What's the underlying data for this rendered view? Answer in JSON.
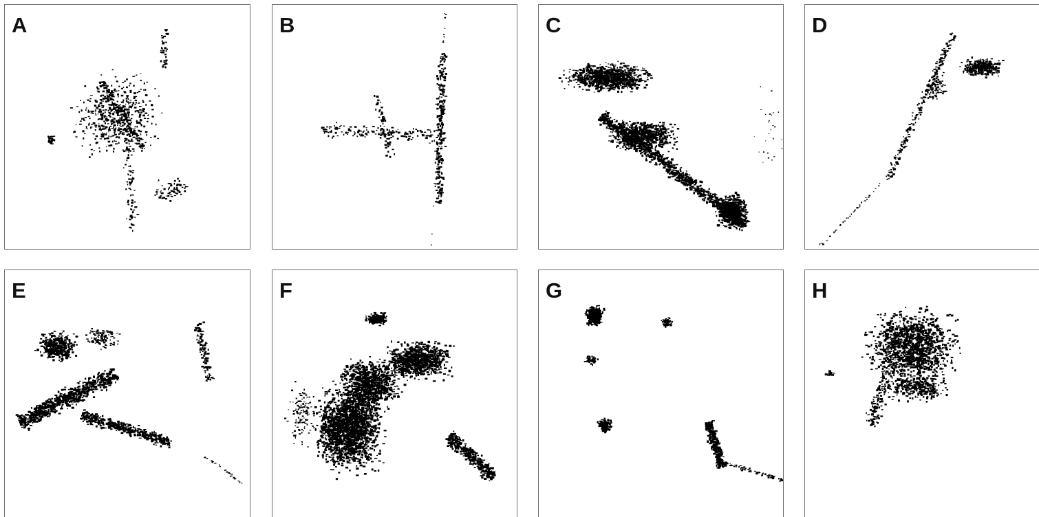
{
  "figure": {
    "panels": [
      {
        "label": "A",
        "pattern": "dispersed-radial-settlement-footprint"
      },
      {
        "label": "B",
        "pattern": "linear-cross-settlement-footprint"
      },
      {
        "label": "C",
        "pattern": "river-valley-dense-settlement-footprint"
      },
      {
        "label": "D",
        "pattern": "linear-diagonal-settlement-footprint"
      },
      {
        "label": "E",
        "pattern": "clustered-multi-core-settlement-footprint"
      },
      {
        "label": "F",
        "pattern": "compact-dense-city-footprint"
      },
      {
        "label": "G",
        "pattern": "scattered-small-cluster-footprint"
      },
      {
        "label": "H",
        "pattern": "compact-grid-town-footprint"
      }
    ],
    "colors": {
      "building": "#000000",
      "frame": "#6f6f6f",
      "background": "#ffffff"
    }
  }
}
